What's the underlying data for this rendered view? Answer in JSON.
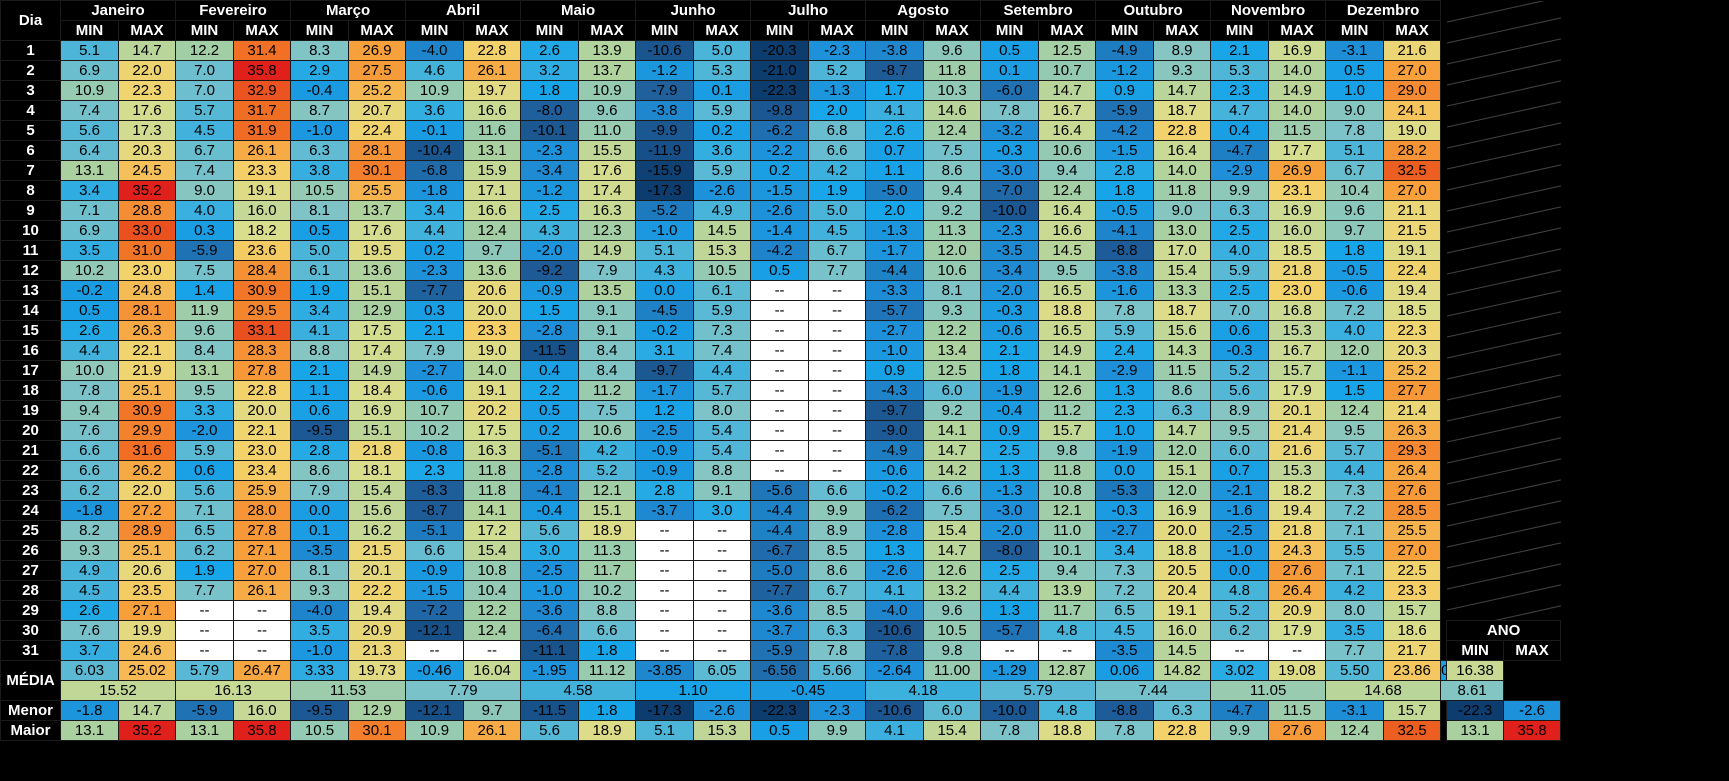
{
  "header": {
    "day_label": "Dia",
    "min_label": "MIN",
    "max_label": "MAX",
    "year_label": "ANO"
  },
  "months": [
    "Janeiro",
    "Fevereiro",
    "Março",
    "Abril",
    "Maio",
    "Junho",
    "Julho",
    "Agosto",
    "Setembro",
    "Outubro",
    "Novembro",
    "Dezembro"
  ],
  "summary_labels": {
    "media": "MÉDIA",
    "menor": "Menor",
    "maior": "Maior"
  },
  "chart_data": {
    "type": "heatmap",
    "days": [
      "1",
      "2",
      "3",
      "4",
      "5",
      "6",
      "7",
      "8",
      "9",
      "10",
      "11",
      "12",
      "13",
      "14",
      "15",
      "16",
      "17",
      "18",
      "19",
      "20",
      "21",
      "22",
      "23",
      "24",
      "25",
      "26",
      "27",
      "28",
      "29",
      "30",
      "31"
    ],
    "daily": [
      [
        "5.1",
        "14.7",
        "12.2",
        "31.4",
        "8.3",
        "26.9",
        "-4.0",
        "22.8",
        "2.6",
        "13.9",
        "-10.6",
        "5.0",
        "-20.3",
        "-2.3",
        "-3.8",
        "9.6",
        "0.5",
        "12.5",
        "-4.9",
        "8.9",
        "2.1",
        "16.9",
        "-3.1",
        "21.6"
      ],
      [
        "6.9",
        "22.0",
        "7.0",
        "35.8",
        "2.9",
        "27.5",
        "4.6",
        "26.1",
        "3.2",
        "13.7",
        "-1.2",
        "5.3",
        "-21.0",
        "5.2",
        "-8.7",
        "11.8",
        "0.1",
        "10.7",
        "-1.2",
        "9.3",
        "5.3",
        "14.0",
        "0.5",
        "27.0"
      ],
      [
        "10.9",
        "22.3",
        "7.0",
        "32.9",
        "-0.4",
        "25.2",
        "10.9",
        "19.7",
        "1.8",
        "10.9",
        "-7.9",
        "0.1",
        "-22.3",
        "-1.3",
        "1.7",
        "10.3",
        "-6.0",
        "14.7",
        "0.9",
        "14.7",
        "2.3",
        "14.9",
        "1.0",
        "29.0"
      ],
      [
        "7.4",
        "17.6",
        "5.7",
        "31.7",
        "8.7",
        "20.7",
        "3.6",
        "16.6",
        "-8.0",
        "9.6",
        "-3.8",
        "5.9",
        "-9.8",
        "2.0",
        "4.1",
        "14.6",
        "7.8",
        "16.7",
        "-5.9",
        "18.7",
        "4.7",
        "14.0",
        "9.0",
        "24.1"
      ],
      [
        "5.6",
        "17.3",
        "4.5",
        "31.9",
        "-1.0",
        "22.4",
        "-0.1",
        "11.6",
        "-10.1",
        "11.0",
        "-9.9",
        "0.2",
        "-6.2",
        "6.8",
        "2.6",
        "12.4",
        "-3.2",
        "16.4",
        "-4.2",
        "22.8",
        "0.4",
        "11.5",
        "7.8",
        "19.0"
      ],
      [
        "6.4",
        "20.3",
        "6.7",
        "26.1",
        "6.3",
        "28.1",
        "-10.4",
        "13.1",
        "-2.3",
        "15.5",
        "-11.9",
        "3.6",
        "-2.2",
        "6.6",
        "0.7",
        "7.5",
        "-0.3",
        "10.6",
        "-1.5",
        "16.4",
        "-4.7",
        "17.7",
        "5.1",
        "28.2"
      ],
      [
        "13.1",
        "24.5",
        "7.4",
        "23.3",
        "3.8",
        "30.1",
        "-6.8",
        "15.9",
        "-3.4",
        "17.6",
        "-15.9",
        "5.9",
        "0.2",
        "4.2",
        "1.1",
        "8.6",
        "-3.0",
        "9.4",
        "2.8",
        "14.0",
        "-2.9",
        "26.9",
        "6.7",
        "32.5"
      ],
      [
        "3.4",
        "35.2",
        "9.0",
        "19.1",
        "10.5",
        "25.5",
        "-1.8",
        "17.1",
        "-1.2",
        "17.4",
        "-17.3",
        "-2.6",
        "-1.5",
        "1.9",
        "-5.0",
        "9.4",
        "-7.0",
        "12.4",
        "1.8",
        "11.8",
        "9.9",
        "23.1",
        "10.4",
        "27.0"
      ],
      [
        "7.1",
        "28.8",
        "4.0",
        "16.0",
        "8.1",
        "13.7",
        "3.4",
        "16.6",
        "2.5",
        "16.3",
        "-5.2",
        "4.9",
        "-2.6",
        "5.0",
        "2.0",
        "9.2",
        "-10.0",
        "16.4",
        "-0.5",
        "9.0",
        "6.3",
        "16.9",
        "9.6",
        "21.1"
      ],
      [
        "6.9",
        "33.0",
        "0.3",
        "18.2",
        "0.5",
        "17.6",
        "4.4",
        "12.4",
        "4.3",
        "12.3",
        "-1.0",
        "14.5",
        "-1.4",
        "4.5",
        "-1.3",
        "11.3",
        "-2.3",
        "16.6",
        "-4.1",
        "13.0",
        "2.5",
        "16.0",
        "9.7",
        "21.5"
      ],
      [
        "3.5",
        "31.0",
        "-5.9",
        "23.6",
        "5.0",
        "19.5",
        "0.2",
        "9.7",
        "-2.0",
        "14.9",
        "5.1",
        "15.3",
        "-4.2",
        "6.7",
        "-1.7",
        "12.0",
        "-3.5",
        "14.5",
        "-8.8",
        "17.0",
        "4.0",
        "18.5",
        "1.8",
        "19.1"
      ],
      [
        "10.2",
        "23.0",
        "7.5",
        "28.4",
        "6.1",
        "13.6",
        "-2.3",
        "13.6",
        "-9.2",
        "7.9",
        "4.3",
        "10.5",
        "0.5",
        "7.7",
        "-4.4",
        "10.6",
        "-3.4",
        "9.5",
        "-3.8",
        "15.4",
        "5.9",
        "21.8",
        "-0.5",
        "22.4"
      ],
      [
        "-0.2",
        "24.8",
        "1.4",
        "30.9",
        "1.9",
        "15.1",
        "-7.7",
        "20.6",
        "-0.9",
        "13.5",
        "0.0",
        "6.1",
        "--",
        "--",
        "-3.3",
        "8.1",
        "-2.0",
        "16.5",
        "-1.6",
        "13.3",
        "2.5",
        "23.0",
        "-0.6",
        "19.4"
      ],
      [
        "0.5",
        "28.1",
        "11.9",
        "29.5",
        "3.4",
        "12.9",
        "0.3",
        "20.0",
        "1.5",
        "9.1",
        "-4.5",
        "5.9",
        "--",
        "--",
        "-5.7",
        "9.3",
        "-0.3",
        "18.8",
        "7.8",
        "18.7",
        "7.0",
        "16.8",
        "7.2",
        "18.5"
      ],
      [
        "2.6",
        "26.3",
        "9.6",
        "33.1",
        "4.1",
        "17.5",
        "2.1",
        "23.3",
        "-2.8",
        "9.1",
        "-0.2",
        "7.3",
        "--",
        "--",
        "-2.7",
        "12.2",
        "-0.6",
        "16.5",
        "5.9",
        "15.6",
        "0.6",
        "15.3",
        "4.0",
        "22.3"
      ],
      [
        "4.4",
        "22.1",
        "8.4",
        "28.3",
        "8.8",
        "17.4",
        "7.9",
        "19.0",
        "-11.5",
        "8.4",
        "3.1",
        "7.4",
        "--",
        "--",
        "-1.0",
        "13.4",
        "2.1",
        "14.9",
        "2.4",
        "14.3",
        "-0.3",
        "16.7",
        "12.0",
        "20.3"
      ],
      [
        "10.0",
        "21.9",
        "13.1",
        "27.8",
        "2.1",
        "14.9",
        "-2.7",
        "14.0",
        "0.4",
        "8.4",
        "-9.7",
        "4.4",
        "--",
        "--",
        "0.9",
        "12.5",
        "1.8",
        "14.1",
        "-2.9",
        "11.5",
        "5.2",
        "15.7",
        "-1.1",
        "25.2"
      ],
      [
        "7.8",
        "25.1",
        "9.5",
        "22.8",
        "1.1",
        "18.4",
        "-0.6",
        "19.1",
        "2.2",
        "11.2",
        "-1.7",
        "5.7",
        "--",
        "--",
        "-4.3",
        "6.0",
        "-1.9",
        "12.6",
        "1.3",
        "8.6",
        "5.6",
        "17.9",
        "1.5",
        "27.7"
      ],
      [
        "9.4",
        "30.9",
        "3.3",
        "20.0",
        "0.6",
        "16.9",
        "10.7",
        "20.2",
        "0.5",
        "7.5",
        "1.2",
        "8.0",
        "--",
        "--",
        "-9.7",
        "9.2",
        "-0.4",
        "11.2",
        "2.3",
        "6.3",
        "8.9",
        "20.1",
        "12.4",
        "21.4"
      ],
      [
        "7.6",
        "29.9",
        "-2.0",
        "22.1",
        "-9.5",
        "15.1",
        "10.2",
        "17.5",
        "0.2",
        "10.6",
        "-2.5",
        "5.4",
        "--",
        "--",
        "-9.0",
        "14.1",
        "0.9",
        "15.7",
        "1.0",
        "14.7",
        "9.5",
        "21.4",
        "9.5",
        "26.3"
      ],
      [
        "6.6",
        "31.6",
        "5.9",
        "23.0",
        "2.8",
        "21.8",
        "-0.8",
        "16.3",
        "-5.1",
        "4.2",
        "-0.9",
        "5.4",
        "--",
        "--",
        "-4.9",
        "14.7",
        "2.5",
        "9.8",
        "-1.9",
        "12.0",
        "6.0",
        "21.6",
        "5.7",
        "29.3"
      ],
      [
        "6.6",
        "26.2",
        "0.6",
        "23.4",
        "8.6",
        "18.1",
        "2.3",
        "11.8",
        "-2.8",
        "5.2",
        "-0.9",
        "8.8",
        "--",
        "--",
        "-0.6",
        "14.2",
        "1.3",
        "11.8",
        "0.0",
        "15.1",
        "0.7",
        "15.3",
        "4.4",
        "26.4"
      ],
      [
        "6.2",
        "22.0",
        "5.6",
        "25.9",
        "7.9",
        "15.4",
        "-8.3",
        "11.8",
        "-4.1",
        "12.1",
        "2.8",
        "9.1",
        "-5.6",
        "6.6",
        "-0.2",
        "6.6",
        "-1.3",
        "10.8",
        "-5.3",
        "12.0",
        "-2.1",
        "18.2",
        "7.3",
        "27.6"
      ],
      [
        "-1.8",
        "27.2",
        "7.1",
        "28.0",
        "0.0",
        "15.6",
        "-8.7",
        "14.1",
        "-0.4",
        "15.1",
        "-3.7",
        "3.0",
        "-4.4",
        "9.9",
        "-6.2",
        "7.5",
        "-3.0",
        "12.1",
        "-0.3",
        "16.9",
        "-1.6",
        "19.4",
        "7.2",
        "28.5"
      ],
      [
        "8.2",
        "28.9",
        "6.5",
        "27.8",
        "0.1",
        "16.2",
        "-5.1",
        "17.2",
        "5.6",
        "18.9",
        "--",
        "--",
        "-4.4",
        "8.9",
        "-2.8",
        "15.4",
        "-2.0",
        "11.0",
        "-2.7",
        "20.0",
        "-2.5",
        "21.8",
        "7.1",
        "25.5"
      ],
      [
        "9.3",
        "25.1",
        "6.2",
        "27.1",
        "-3.5",
        "21.5",
        "6.6",
        "15.4",
        "3.0",
        "11.3",
        "--",
        "--",
        "-6.7",
        "8.5",
        "1.3",
        "14.7",
        "-8.0",
        "10.1",
        "3.4",
        "18.8",
        "-1.0",
        "24.3",
        "5.5",
        "27.0"
      ],
      [
        "4.9",
        "20.6",
        "1.9",
        "27.0",
        "8.1",
        "20.1",
        "-0.9",
        "10.8",
        "-2.5",
        "11.7",
        "--",
        "--",
        "-5.0",
        "8.6",
        "-2.6",
        "12.6",
        "2.5",
        "9.4",
        "7.3",
        "20.5",
        "0.0",
        "27.6",
        "7.1",
        "22.5"
      ],
      [
        "4.5",
        "23.5",
        "7.7",
        "26.1",
        "9.3",
        "22.2",
        "-1.5",
        "10.4",
        "-1.0",
        "10.2",
        "--",
        "--",
        "-7.7",
        "6.7",
        "4.1",
        "13.2",
        "4.4",
        "13.9",
        "7.2",
        "20.4",
        "4.8",
        "26.4",
        "4.2",
        "23.3"
      ],
      [
        "2.6",
        "27.1",
        "--",
        "--",
        "-4.0",
        "19.4",
        "-7.2",
        "12.2",
        "-3.6",
        "8.8",
        "--",
        "--",
        "-3.6",
        "8.5",
        "-4.0",
        "9.6",
        "1.3",
        "11.7",
        "6.5",
        "19.1",
        "5.2",
        "20.9",
        "8.0",
        "15.7"
      ],
      [
        "7.6",
        "19.9",
        "--",
        "--",
        "3.5",
        "20.9",
        "-12.1",
        "12.4",
        "-6.4",
        "6.6",
        "--",
        "--",
        "-3.7",
        "6.3",
        "-10.6",
        "10.5",
        "-5.7",
        "4.8",
        "4.5",
        "16.0",
        "6.2",
        "17.9",
        "3.5",
        "18.6"
      ],
      [
        "3.7",
        "24.6",
        "--",
        "--",
        "-1.0",
        "21.3",
        "--",
        "--",
        "-11.1",
        "1.8",
        "--",
        "--",
        "-5.9",
        "7.8",
        "-7.8",
        "9.8",
        "--",
        "--",
        "-3.5",
        "14.5",
        "--",
        "--",
        "7.7",
        "21.7"
      ]
    ],
    "media_minmax": [
      "6.03",
      "25.02",
      "5.79",
      "26.47",
      "3.33",
      "19.73",
      "-0.46",
      "16.04",
      "-1.95",
      "11.12",
      "-3.85",
      "6.05",
      "-6.56",
      "5.66",
      "-2.64",
      "11.00",
      "-1.29",
      "12.87",
      "0.06",
      "14.82",
      "3.02",
      "19.08",
      "5.50",
      "23.86"
    ],
    "media_avg": [
      "15.52",
      "16.13",
      "11.53",
      "7.79",
      "4.58",
      "1.10",
      "-0.45",
      "4.18",
      "5.79",
      "7.44",
      "11.05",
      "14.68"
    ],
    "menor": [
      "-1.8",
      "14.7",
      "-5.9",
      "16.0",
      "-9.5",
      "12.9",
      "-12.1",
      "9.7",
      "-11.5",
      "1.8",
      "-17.3",
      "-2.6",
      "-22.3",
      "-2.3",
      "-10.6",
      "6.0",
      "-10.0",
      "4.8",
      "-8.8",
      "6.3",
      "-4.7",
      "11.5",
      "-3.1",
      "15.7"
    ],
    "maior": [
      "13.1",
      "35.2",
      "13.1",
      "35.8",
      "10.5",
      "30.1",
      "10.9",
      "26.1",
      "5.6",
      "18.9",
      "5.1",
      "15.3",
      "0.5",
      "9.9",
      "4.1",
      "15.4",
      "7.8",
      "18.8",
      "7.8",
      "22.8",
      "9.9",
      "27.6",
      "12.4",
      "32.5"
    ],
    "year": {
      "media_min": "0.83",
      "media_max": "16.38",
      "media_avg": "8.61",
      "menor_min": "-22.3",
      "menor_max": "-2.6",
      "maior_min": "13.1",
      "maior_max": "35.8"
    },
    "color_scale": {
      "stops": [
        {
          "value": -17,
          "color": "#0d3d6e"
        },
        {
          "value": -8,
          "color": "#1f5f9c"
        },
        {
          "value": -3,
          "color": "#1e8fd8"
        },
        {
          "value": 2,
          "color": "#17a6ea"
        },
        {
          "value": 8,
          "color": "#7ec3c8"
        },
        {
          "value": 13,
          "color": "#a9d0a0"
        },
        {
          "value": 18,
          "color": "#d8de8e"
        },
        {
          "value": 23,
          "color": "#f4d26a"
        },
        {
          "value": 27,
          "color": "#f7a03c"
        },
        {
          "value": 32,
          "color": "#f06a22"
        },
        {
          "value": 35,
          "color": "#e0201a"
        }
      ],
      "missing_color": "#ffffff"
    }
  }
}
